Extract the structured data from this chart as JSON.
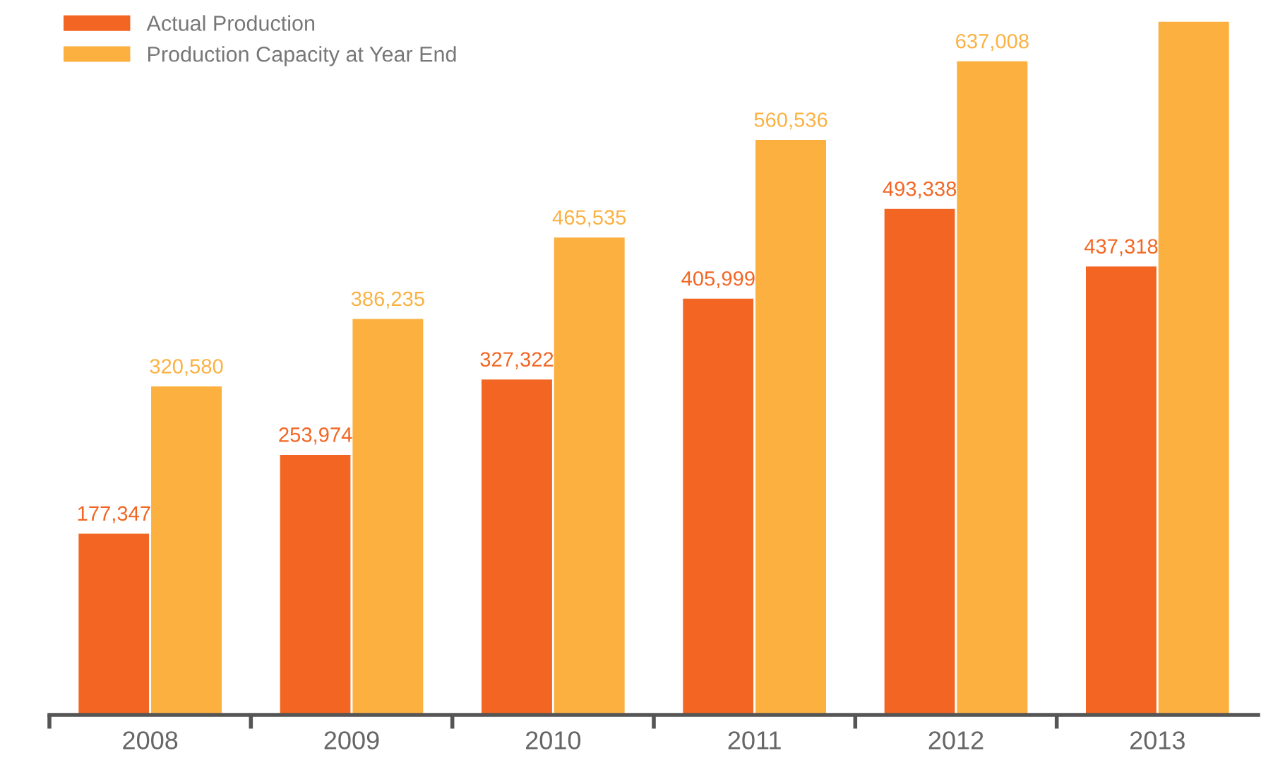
{
  "chart_data": {
    "type": "bar",
    "categories": [
      "2008",
      "2009",
      "2010",
      "2011",
      "2012",
      "2013"
    ],
    "series": [
      {
        "name": "Actual Production",
        "color": "#f26522",
        "values": [
          177347,
          253974,
          327322,
          405999,
          493338,
          437318
        ],
        "value_labels": [
          "177,347",
          "253,974",
          "327,322",
          "405,999",
          "493,338",
          "437,318"
        ]
      },
      {
        "name": "Production Capacity at Year End",
        "color": "#fbb040",
        "values": [
          320580,
          386235,
          465535,
          560536,
          637008,
          675500
        ],
        "value_labels": [
          "320,580",
          "386,235",
          "465,535",
          "560,536",
          "637,008",
          null
        ]
      }
    ],
    "legend": "top left",
    "grid": false
  }
}
